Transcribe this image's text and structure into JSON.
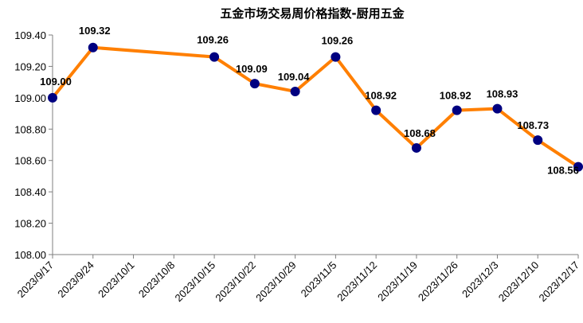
{
  "chart_data": {
    "type": "line",
    "title": "五金市场交易周价格指数-厨用五金",
    "xlabel": "",
    "ylabel": "",
    "categories": [
      "2023/9/17",
      "2023/9/24",
      "2023/10/1",
      "2023/10/8",
      "2023/10/15",
      "2023/10/22",
      "2023/10/29",
      "2023/11/5",
      "2023/11/12",
      "2023/11/19",
      "2023/11/26",
      "2023/12/3",
      "2023/12/10",
      "2023/12/17"
    ],
    "yticks": [
      "109.40",
      "109.20",
      "109.00",
      "108.80",
      "108.60",
      "108.40",
      "108.20",
      "108.00"
    ],
    "ylim": [
      108.0,
      109.4
    ],
    "grid": false,
    "legend": "none",
    "series": [
      {
        "points": [
          {
            "x": "2023/9/17",
            "y": 109.0,
            "label": "109.00"
          },
          {
            "x": "2023/9/24",
            "y": 109.32,
            "label": "109.32"
          },
          {
            "x": "2023/10/15",
            "y": 109.26,
            "label": "109.26"
          },
          {
            "x": "2023/10/22",
            "y": 109.09,
            "label": "109.09"
          },
          {
            "x": "2023/10/29",
            "y": 109.04,
            "label": "109.04"
          },
          {
            "x": "2023/11/5",
            "y": 109.26,
            "label": "109.26"
          },
          {
            "x": "2023/11/12",
            "y": 108.92,
            "label": "108.92"
          },
          {
            "x": "2023/11/19",
            "y": 108.68,
            "label": "108.68"
          },
          {
            "x": "2023/11/26",
            "y": 108.92,
            "label": "108.92"
          },
          {
            "x": "2023/12/3",
            "y": 108.93,
            "label": "108.93"
          },
          {
            "x": "2023/12/10",
            "y": 108.73,
            "label": "108.73"
          },
          {
            "x": "2023/12/17",
            "y": 108.56,
            "label": "108.56"
          }
        ]
      }
    ],
    "colors": {
      "line": "#ff7f00",
      "marker": "#000080",
      "axis": "#7f7f7f"
    }
  }
}
